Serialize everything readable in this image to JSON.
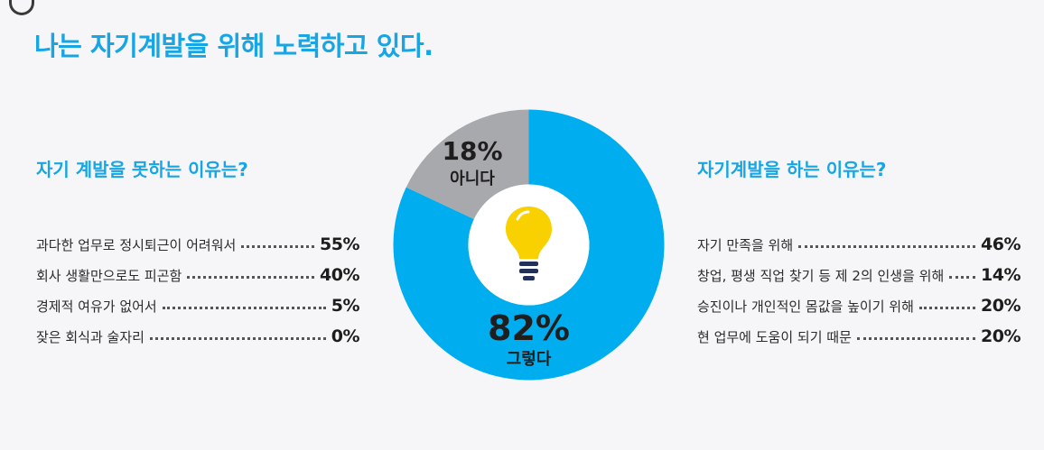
{
  "header": {
    "title": "나는 자기계발을 위해 노력하고 있다."
  },
  "left_panel": {
    "title": "자기 계발을 못하는 이유는?",
    "items": [
      {
        "label": "과다한 업무로 정시퇴근이 어려워서",
        "value": "55%"
      },
      {
        "label": "회사 생활만으로도 피곤함",
        "value": "40%"
      },
      {
        "label": "경제적 여유가 없어서",
        "value": "5%"
      },
      {
        "label": "잦은 회식과 술자리",
        "value": "0%"
      }
    ]
  },
  "right_panel": {
    "title": "자기계발을 하는 이유는?",
    "items": [
      {
        "label": "자기 만족을 위해",
        "value": "46%"
      },
      {
        "label": "창업, 평생 직업 찾기 등 제 2의 인생을 위해",
        "value": "14%"
      },
      {
        "label": "승진이나 개인적인 몸값을 높이기 위해",
        "value": "20%"
      },
      {
        "label": "현 업무에 도움이 되기 때문",
        "value": "20%"
      }
    ]
  },
  "chart_data": {
    "type": "pie",
    "donut": true,
    "slices": [
      {
        "label": "그렇다",
        "value": 82,
        "display": "82%",
        "color": "#00aeef"
      },
      {
        "label": "아니다",
        "value": 18,
        "display": "18%",
        "color": "#a7a9ac"
      }
    ],
    "center_icon": "lightbulb-icon",
    "icon_color": "#f9d100"
  }
}
